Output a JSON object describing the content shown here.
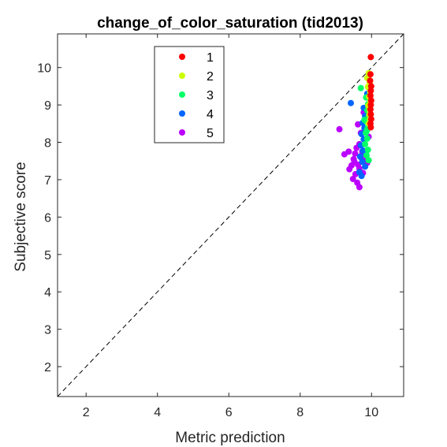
{
  "chart_data": {
    "type": "scatter",
    "title": "change_of_color_saturation (tid2013)",
    "xlabel": "Metric prediction",
    "ylabel": "Subjective score",
    "xlim": [
      1.2,
      10.9
    ],
    "ylim": [
      1.2,
      10.9
    ],
    "xticks": [
      2,
      4,
      6,
      8,
      10
    ],
    "yticks": [
      2,
      3,
      4,
      5,
      6,
      7,
      8,
      9,
      10
    ],
    "identity_line": true,
    "grid": false,
    "legend_position": "top-left",
    "series": [
      {
        "name": "1",
        "color": "#ff0000",
        "points": [
          [
            9.98,
            10.28
          ],
          [
            9.97,
            9.82
          ],
          [
            9.96,
            9.65
          ],
          [
            9.99,
            9.5
          ],
          [
            9.98,
            9.38
          ],
          [
            9.97,
            9.25
          ],
          [
            9.99,
            9.12
          ],
          [
            9.98,
            9.0
          ],
          [
            9.97,
            8.88
          ],
          [
            9.98,
            8.75
          ],
          [
            9.99,
            8.62
          ],
          [
            9.97,
            8.5
          ],
          [
            9.98,
            8.4
          ]
        ]
      },
      {
        "name": "2",
        "color": "#ccff00",
        "points": [
          [
            9.92,
            9.85
          ],
          [
            9.88,
            9.72
          ],
          [
            9.95,
            9.6
          ],
          [
            9.9,
            9.48
          ],
          [
            9.96,
            9.35
          ],
          [
            9.93,
            9.22
          ],
          [
            9.97,
            9.1
          ],
          [
            9.91,
            8.98
          ],
          [
            9.95,
            8.86
          ],
          [
            9.94,
            8.74
          ],
          [
            9.96,
            8.62
          ],
          [
            9.92,
            8.5
          ]
        ]
      },
      {
        "name": "3",
        "color": "#00ff66",
        "points": [
          [
            9.7,
            9.45
          ],
          [
            9.85,
            9.2
          ],
          [
            9.9,
            9.02
          ],
          [
            9.88,
            8.85
          ],
          [
            9.92,
            8.7
          ],
          [
            9.86,
            8.55
          ],
          [
            9.9,
            8.4
          ],
          [
            9.84,
            8.25
          ],
          [
            9.88,
            8.1
          ],
          [
            9.82,
            7.95
          ],
          [
            9.9,
            7.8
          ],
          [
            9.86,
            7.65
          ],
          [
            9.92,
            7.52
          ],
          [
            9.8,
            8.6
          ],
          [
            9.87,
            8.32
          ]
        ]
      },
      {
        "name": "4",
        "color": "#0066ff",
        "points": [
          [
            9.42,
            9.05
          ],
          [
            9.78,
            8.92
          ],
          [
            9.82,
            8.7
          ],
          [
            9.75,
            8.52
          ],
          [
            9.8,
            8.38
          ],
          [
            9.72,
            8.22
          ],
          [
            9.78,
            8.08
          ],
          [
            9.7,
            7.92
          ],
          [
            9.76,
            7.78
          ],
          [
            9.68,
            7.62
          ],
          [
            9.74,
            7.48
          ],
          [
            9.82,
            7.35
          ],
          [
            9.66,
            7.2
          ],
          [
            9.72,
            7.1
          ],
          [
            9.88,
            9.3
          ],
          [
            9.84,
            7.7
          ]
        ]
      },
      {
        "name": "5",
        "color": "#bb00ff",
        "points": [
          [
            9.1,
            8.35
          ],
          [
            9.78,
            8.8
          ],
          [
            9.62,
            8.48
          ],
          [
            9.7,
            8.25
          ],
          [
            9.92,
            8.15
          ],
          [
            9.66,
            7.95
          ],
          [
            9.58,
            7.85
          ],
          [
            9.74,
            7.75
          ],
          [
            9.54,
            7.7
          ],
          [
            9.36,
            7.75
          ],
          [
            9.24,
            7.68
          ],
          [
            9.7,
            7.6
          ],
          [
            9.52,
            7.48
          ],
          [
            9.62,
            7.4
          ],
          [
            9.44,
            7.38
          ],
          [
            9.38,
            7.28
          ],
          [
            9.66,
            7.3
          ],
          [
            9.8,
            7.55
          ],
          [
            9.55,
            7.15
          ],
          [
            9.48,
            7.02
          ],
          [
            9.6,
            6.92
          ],
          [
            9.66,
            6.8
          ],
          [
            9.88,
            7.45
          ],
          [
            9.76,
            7.18
          ],
          [
            9.5,
            7.55
          ]
        ]
      }
    ]
  }
}
